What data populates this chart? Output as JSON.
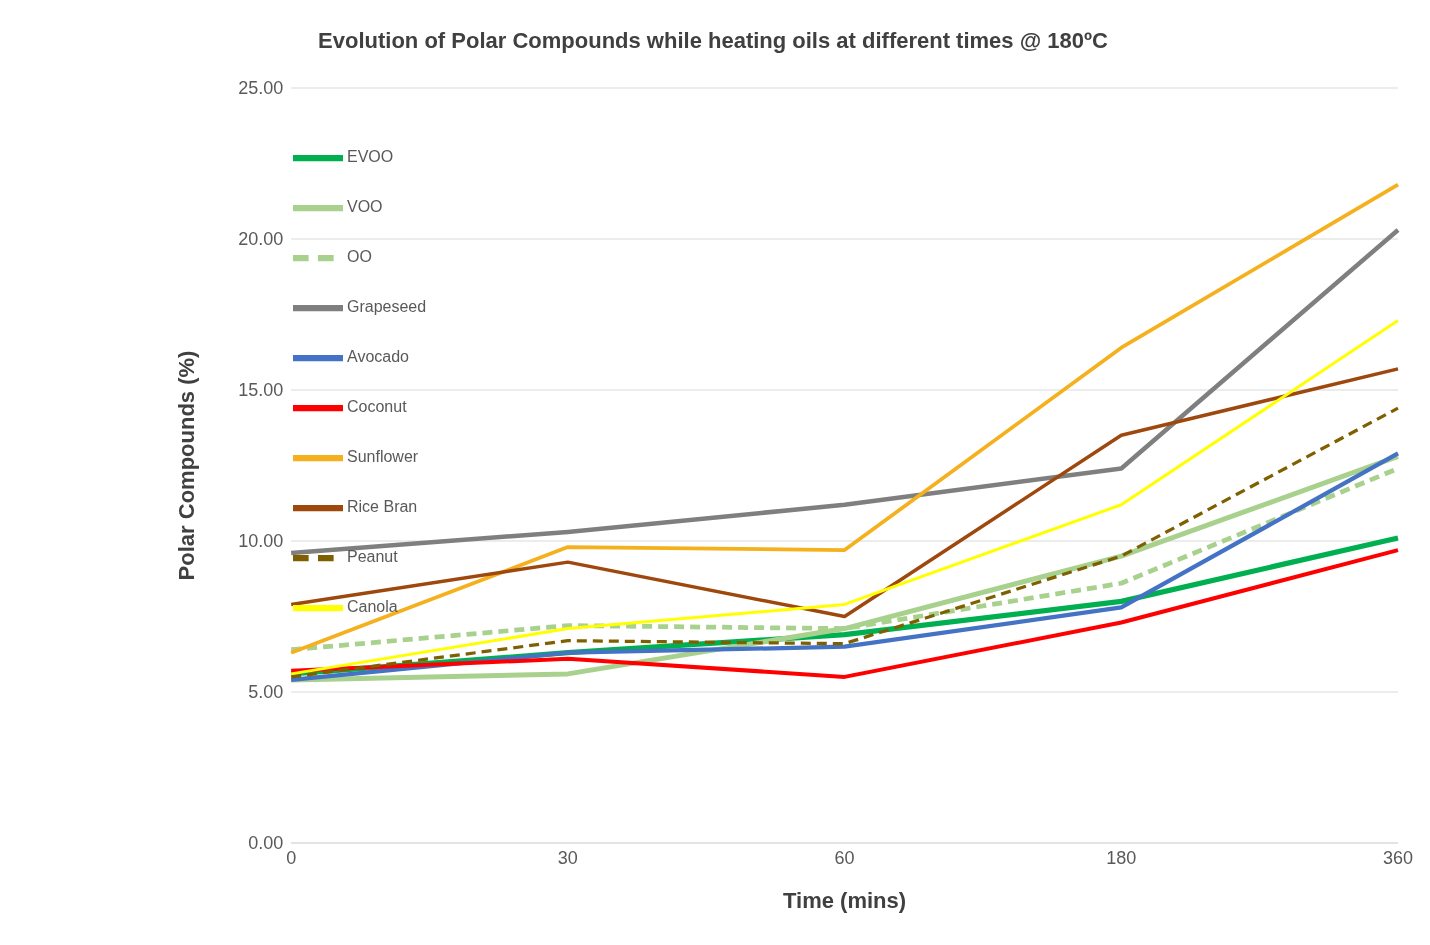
{
  "chart_data": {
    "type": "line",
    "title": "Evolution of Polar Compounds while heating oils at different times @ 180ºC",
    "xlabel": "Time (mins)",
    "ylabel": "Polar Compounds (%)",
    "categories": [
      "0",
      "30",
      "60",
      "180",
      "360"
    ],
    "ylim": [
      0,
      25
    ],
    "yticks": [
      {
        "value": 0,
        "label": "0.00"
      },
      {
        "value": 5,
        "label": "5.00"
      },
      {
        "value": 10,
        "label": "10.00"
      },
      {
        "value": 15,
        "label": "15.00"
      },
      {
        "value": 20,
        "label": "20.00"
      },
      {
        "value": 25,
        "label": "25.00"
      }
    ],
    "grid": "y",
    "legend": "top left",
    "marker": "none",
    "series": [
      {
        "name": "EVOO",
        "color": "#00b050",
        "line_style": "solid",
        "values": [
          5.6,
          6.3,
          6.9,
          8.0,
          10.1
        ]
      },
      {
        "name": "VOO",
        "color": "#a9d18e",
        "line_style": "solid",
        "values": [
          5.4,
          5.6,
          7.1,
          9.5,
          12.8
        ]
      },
      {
        "name": "OO",
        "color": "#a9d18e",
        "line_style": "dashed",
        "values": [
          6.4,
          7.2,
          7.1,
          8.6,
          12.4
        ]
      },
      {
        "name": "Grapeseed",
        "color": "#7f7f7f",
        "line_style": "solid",
        "values": [
          9.6,
          10.3,
          11.2,
          12.4,
          20.3
        ]
      },
      {
        "name": "Avocado",
        "color": "#4472c4",
        "line_style": "solid",
        "values": [
          5.4,
          6.3,
          6.5,
          7.8,
          12.9
        ]
      },
      {
        "name": "Coconut",
        "color": "#ff0000",
        "line_style": "solid",
        "values": [
          5.7,
          6.1,
          5.5,
          7.3,
          9.7
        ]
      },
      {
        "name": "Sunflower",
        "color": "#f5b01e",
        "line_style": "solid",
        "values": [
          6.3,
          9.8,
          9.7,
          16.4,
          21.8
        ]
      },
      {
        "name": "Rice Bran",
        "color": "#9e480e",
        "line_style": "solid",
        "values": [
          7.9,
          9.3,
          7.5,
          13.5,
          15.7
        ]
      },
      {
        "name": "Peanut",
        "color": "#7f6000",
        "line_style": "dashed",
        "values": [
          5.5,
          6.7,
          6.6,
          9.5,
          14.4
        ]
      },
      {
        "name": "Canola",
        "color": "#ffff00",
        "line_style": "solid",
        "values": [
          5.6,
          7.1,
          7.9,
          11.2,
          17.3
        ]
      }
    ]
  }
}
